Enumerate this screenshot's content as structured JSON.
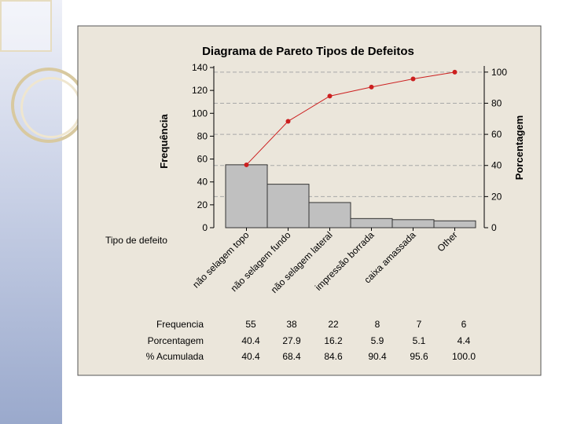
{
  "chart_data": {
    "type": "pareto",
    "title": "Diagrama de Pareto  Tipos de Defeitos",
    "ylabel_left": "Frequência",
    "ylabel_right": "Porcentagem",
    "xlabel": "Tipo de defeito",
    "ylim_left": [
      0,
      140
    ],
    "ylim_right": [
      0,
      100
    ],
    "yticks_left": [
      0,
      20,
      40,
      60,
      80,
      100,
      120,
      140
    ],
    "yticks_right": [
      0,
      20,
      40,
      60,
      80,
      100
    ],
    "categories": [
      "não selagem topo",
      "não selagem fundo",
      "não selagem lateral",
      "impressão borrada",
      "caixa amassada",
      "Other"
    ],
    "series": [
      {
        "name": "Frequencia",
        "type": "bar",
        "values": [
          55,
          38,
          22,
          8,
          7,
          6
        ],
        "color": "#c0c0c0"
      },
      {
        "name": "% Acumulada",
        "type": "line",
        "values": [
          40.4,
          68.4,
          84.6,
          90.4,
          95.6,
          100.0
        ],
        "color": "#cc1f1f"
      }
    ],
    "grid": true,
    "table": {
      "row_labels": [
        "Frequencia",
        "Porcentagem",
        "% Acumulada"
      ],
      "rows": [
        [
          "55",
          "38",
          "22",
          "8",
          "7",
          "6"
        ],
        [
          "40.4",
          "27.9",
          "16.2",
          "5.9",
          "5.1",
          "4.4"
        ],
        [
          "40.4",
          "68.4",
          "84.6",
          "90.4",
          "95.6",
          "100.0"
        ]
      ]
    }
  },
  "colors": {
    "panel_bg": "#ebe6db",
    "bar_fill": "#c0c0c0",
    "line": "#cc1f1f",
    "grid": "#a8a8a8"
  }
}
